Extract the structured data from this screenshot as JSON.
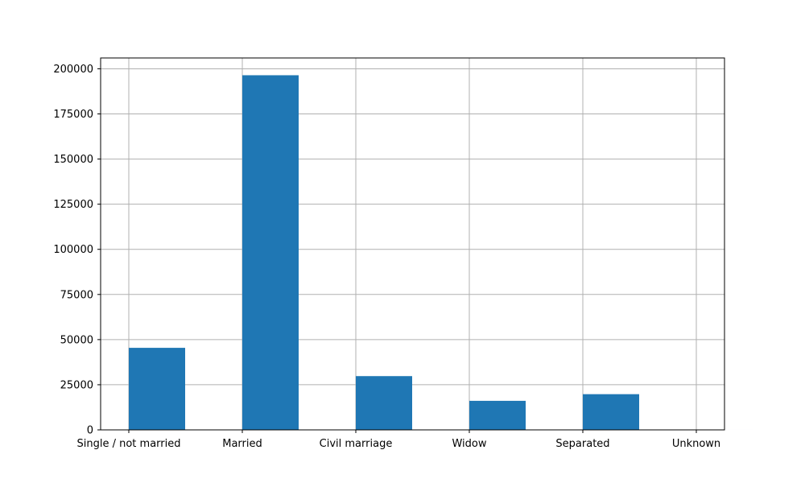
{
  "chart_data": {
    "type": "bar",
    "categories": [
      "Single / not married",
      "Married",
      "Civil marriage",
      "Widow",
      "Separated",
      "Unknown"
    ],
    "values": [
      45444,
      196432,
      29775,
      16088,
      19770,
      2
    ],
    "ylim": [
      0,
      206000
    ],
    "yticks": [
      0,
      25000,
      50000,
      75000,
      100000,
      125000,
      150000,
      175000,
      200000
    ],
    "grid": true,
    "bar_color": "#1f77b4",
    "grid_color": "#b0b0b0"
  }
}
